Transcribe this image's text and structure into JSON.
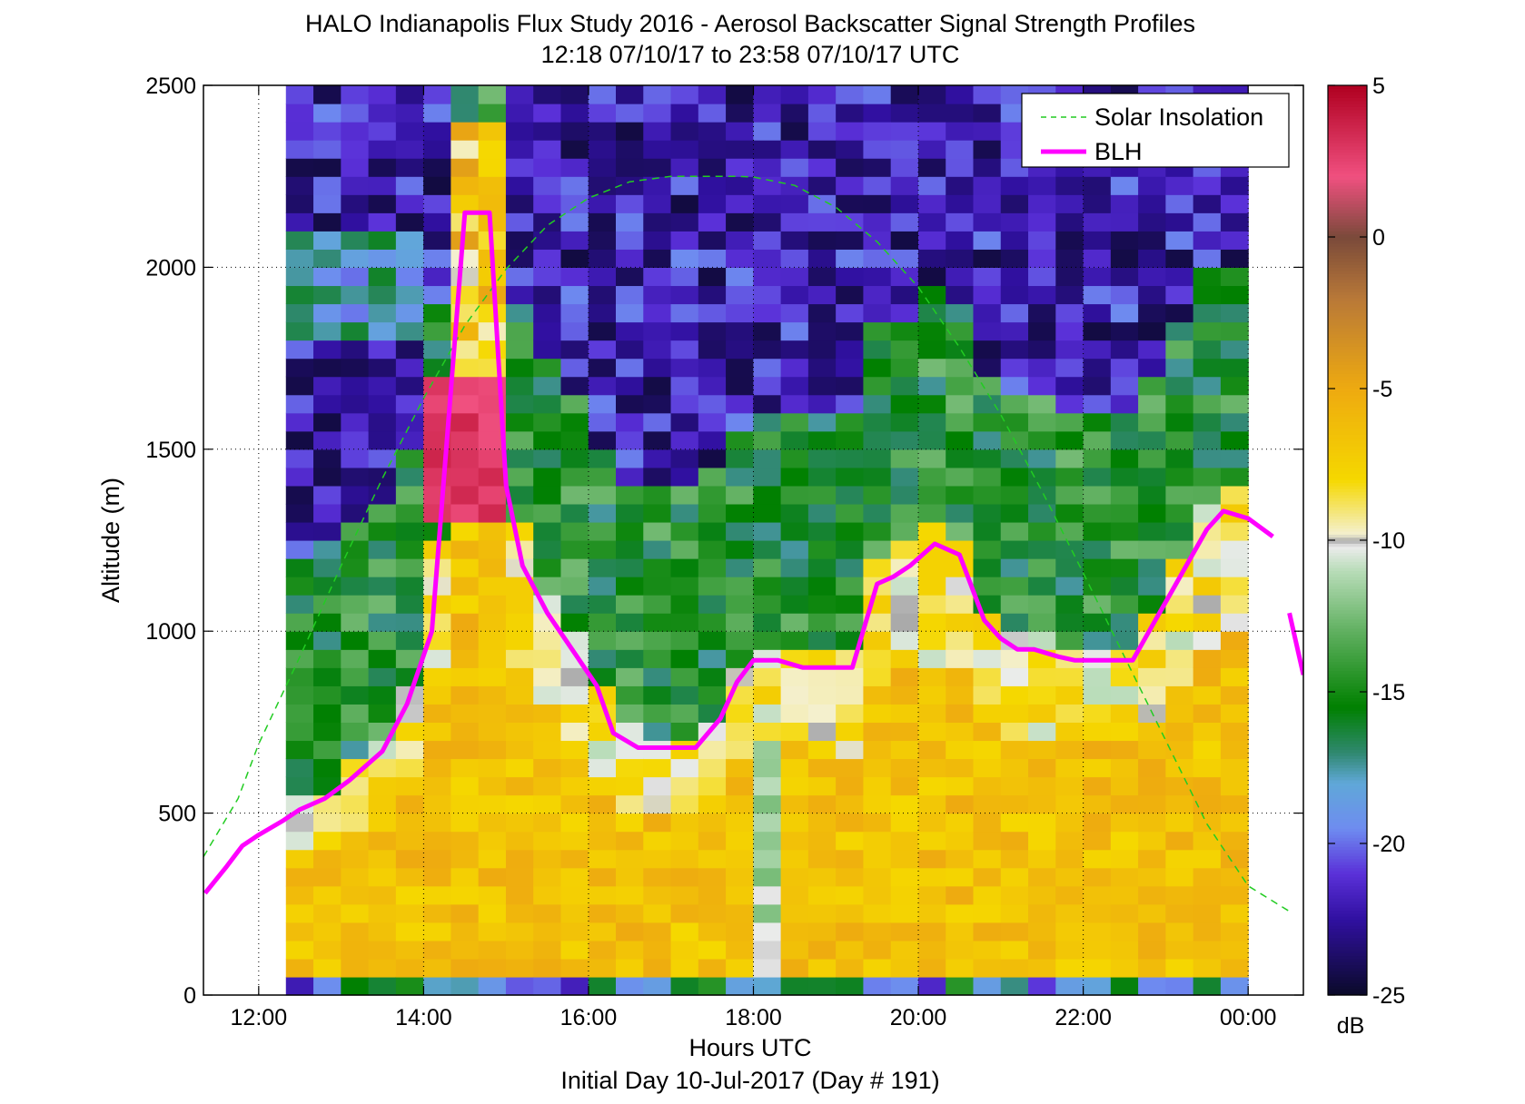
{
  "chart_data": {
    "type": "heatmap",
    "title": "HALO Indianapolis Flux Study 2016 - Aerosol Backscatter Signal Strength Profiles",
    "subtitle": "12:18 07/10/17 to 23:58 07/10/17  UTC",
    "xlabel": "Hours UTC",
    "xlabel2": "Initial Day 10-Jul-2017 (Day # 191)",
    "ylabel": "Altitude (m)",
    "xlim": [
      11.33,
      24.67
    ],
    "ylim": [
      0,
      2500
    ],
    "x_ticks": [
      12,
      14,
      16,
      18,
      20,
      22,
      24
    ],
    "x_tick_labels": [
      "12:00",
      "14:00",
      "16:00",
      "18:00",
      "20:00",
      "22:00",
      "00:00"
    ],
    "y_ticks": [
      0,
      500,
      1000,
      1500,
      2000,
      2500
    ],
    "y_tick_labels": [
      "0",
      "500",
      "1000",
      "1500",
      "2000",
      "2500"
    ],
    "grid": true,
    "colorbar": {
      "label": "dB",
      "range": [
        -25,
        5
      ],
      "ticks": [
        5,
        0,
        -5,
        -10,
        -15,
        -20,
        -25
      ],
      "tick_labels": [
        "5",
        "0",
        "-5",
        "-10",
        "-15",
        "-20",
        "-25"
      ],
      "stops": [
        {
          "v": -25,
          "c": "#0a0a28"
        },
        {
          "v": -22.5,
          "c": "#3010a0"
        },
        {
          "v": -21,
          "c": "#5a30d8"
        },
        {
          "v": -19.5,
          "c": "#6e8cf0"
        },
        {
          "v": -18,
          "c": "#60a8d8"
        },
        {
          "v": -17,
          "c": "#308870"
        },
        {
          "v": -15.5,
          "c": "#008000"
        },
        {
          "v": -13,
          "c": "#60b060"
        },
        {
          "v": -11,
          "c": "#b8dcb8"
        },
        {
          "v": -10.2,
          "c": "#ececec"
        },
        {
          "v": -10,
          "c": "#a8a8a8"
        },
        {
          "v": -9.8,
          "c": "#f4f0d0"
        },
        {
          "v": -8,
          "c": "#f5d800"
        },
        {
          "v": -5,
          "c": "#eeaa10"
        },
        {
          "v": -2,
          "c": "#b87838"
        },
        {
          "v": 0,
          "c": "#7a4a3a"
        },
        {
          "v": 2,
          "c": "#f05080"
        },
        {
          "v": 5,
          "c": "#b00020"
        }
      ]
    },
    "heatmap": {
      "x_start": 12.33,
      "x_end": 24.0,
      "y_start": 0,
      "y_end": 2500,
      "n_cols": 35,
      "n_rows": 50,
      "gate_height_m": 50,
      "first_gate_min_m": 50,
      "unit": "dB"
    },
    "series": [
      {
        "name": "Solar Insolation",
        "style": "dashed",
        "color": "#22cc22",
        "x": [
          11.33,
          11.75,
          12.0,
          12.5,
          13.0,
          13.5,
          14.0,
          14.5,
          15.0,
          15.5,
          16.0,
          16.5,
          17.0,
          17.5,
          17.8,
          18.0,
          18.5,
          19.0,
          19.5,
          20.0,
          20.5,
          21.0,
          21.5,
          22.0,
          22.5,
          23.0,
          23.5,
          24.0,
          24.5
        ],
        "y": [
          380,
          540,
          690,
          930,
          1180,
          1420,
          1640,
          1840,
          1995,
          2115,
          2190,
          2235,
          2250,
          2250,
          2250,
          2248,
          2225,
          2165,
          2070,
          1945,
          1780,
          1595,
          1385,
          1160,
          930,
          700,
          470,
          300,
          230
        ]
      },
      {
        "name": "BLH",
        "style": "solid",
        "color": "#ff00ff",
        "x": [
          11.35,
          11.6,
          11.8,
          12.0,
          12.3,
          12.5,
          12.8,
          13.1,
          13.5,
          13.8,
          14.1,
          14.5,
          14.8,
          15.0,
          15.2,
          15.5,
          15.8,
          16.1,
          16.3,
          16.6,
          17.0,
          17.3,
          17.6,
          17.8,
          18.0,
          18.3,
          18.6,
          18.9,
          19.2,
          19.5,
          19.7,
          19.9,
          20.2,
          20.5,
          20.8,
          21.0,
          21.2,
          21.4,
          21.7,
          21.9,
          22.1,
          22.4,
          22.6,
          22.8,
          23.1,
          23.3,
          23.5,
          23.7,
          24.0,
          24.3
        ],
        "y": [
          280,
          350,
          410,
          440,
          480,
          510,
          540,
          590,
          670,
          800,
          1000,
          2150,
          2150,
          1400,
          1180,
          1050,
          950,
          850,
          720,
          680,
          680,
          680,
          760,
          860,
          920,
          920,
          900,
          900,
          900,
          1130,
          1150,
          1180,
          1240,
          1210,
          1030,
          980,
          950,
          950,
          930,
          920,
          920,
          920,
          920,
          1000,
          1120,
          1200,
          1280,
          1330,
          1310,
          1260
        ]
      },
      {
        "name": "",
        "style": "solid",
        "color": "#ff00ff",
        "x": [
          24.5,
          24.67
        ],
        "y": [
          1050,
          880
        ]
      }
    ],
    "legend": {
      "placement": "top-right",
      "entries": [
        "Solar Insolation",
        "BLH"
      ]
    }
  }
}
